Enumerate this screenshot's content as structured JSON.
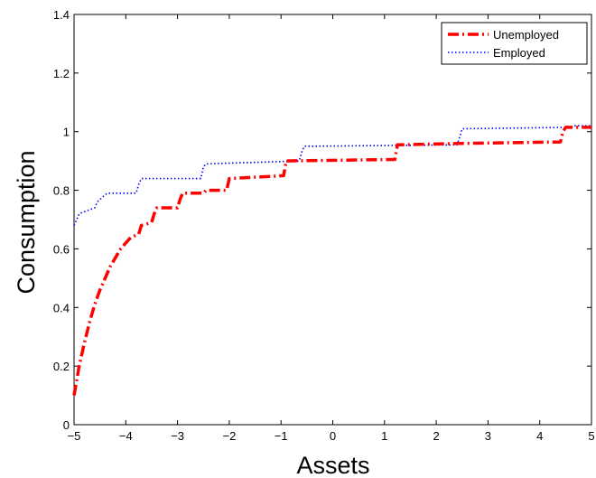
{
  "chart_data": {
    "type": "line",
    "xlabel": "Assets",
    "ylabel": "Consumption",
    "xlim": [
      -5,
      5
    ],
    "ylim": [
      0,
      1.4
    ],
    "xticks": [
      -5,
      -4,
      -3,
      -2,
      -1,
      0,
      1,
      2,
      3,
      4,
      5
    ],
    "xtick_labels": [
      "−5",
      "−4",
      "−3",
      "−2",
      "−1",
      "0",
      "1",
      "2",
      "3",
      "4",
      "5"
    ],
    "yticks": [
      0,
      0.2,
      0.4,
      0.6,
      0.8,
      1.0,
      1.2,
      1.4
    ],
    "ytick_labels": [
      "0",
      "0.2",
      "0.4",
      "0.6",
      "0.8",
      "1",
      "1.2",
      "1.4"
    ],
    "grid": false,
    "legend_position": "top-right",
    "series": [
      {
        "name": "Unemployed",
        "color": "#ff0000",
        "style": "dash-dot",
        "x": [
          -5.0,
          -4.9,
          -4.8,
          -4.7,
          -4.6,
          -4.5,
          -4.4,
          -4.3,
          -4.2,
          -4.1,
          -4.0,
          -3.95,
          -3.9,
          -3.75,
          -3.7,
          -3.5,
          -3.45,
          -3.4,
          -3.0,
          -2.95,
          -2.9,
          -2.5,
          -2.45,
          -2.05,
          -2.0,
          -0.95,
          -0.9,
          1.2,
          1.25,
          2.5,
          4.4,
          4.45,
          4.5,
          5.0
        ],
        "y": [
          0.1,
          0.2,
          0.28,
          0.35,
          0.41,
          0.46,
          0.5,
          0.54,
          0.57,
          0.6,
          0.62,
          0.63,
          0.64,
          0.65,
          0.68,
          0.69,
          0.72,
          0.74,
          0.74,
          0.77,
          0.79,
          0.79,
          0.8,
          0.8,
          0.84,
          0.85,
          0.9,
          0.905,
          0.955,
          0.96,
          0.965,
          1.0,
          1.015,
          1.015
        ]
      },
      {
        "name": "Employed",
        "color": "#0000ff",
        "style": "dotted",
        "x": [
          -5.0,
          -4.95,
          -4.9,
          -4.6,
          -4.55,
          -4.4,
          -4.35,
          -3.8,
          -3.75,
          -3.7,
          -2.55,
          -2.5,
          -2.45,
          -0.65,
          -0.6,
          -0.55,
          2.4,
          2.45,
          2.5,
          4.6,
          4.65,
          5.0
        ],
        "y": [
          0.68,
          0.7,
          0.72,
          0.74,
          0.76,
          0.785,
          0.79,
          0.79,
          0.82,
          0.84,
          0.84,
          0.88,
          0.89,
          0.9,
          0.93,
          0.95,
          0.955,
          0.98,
          1.01,
          1.015,
          1.02,
          1.02
        ]
      }
    ]
  }
}
